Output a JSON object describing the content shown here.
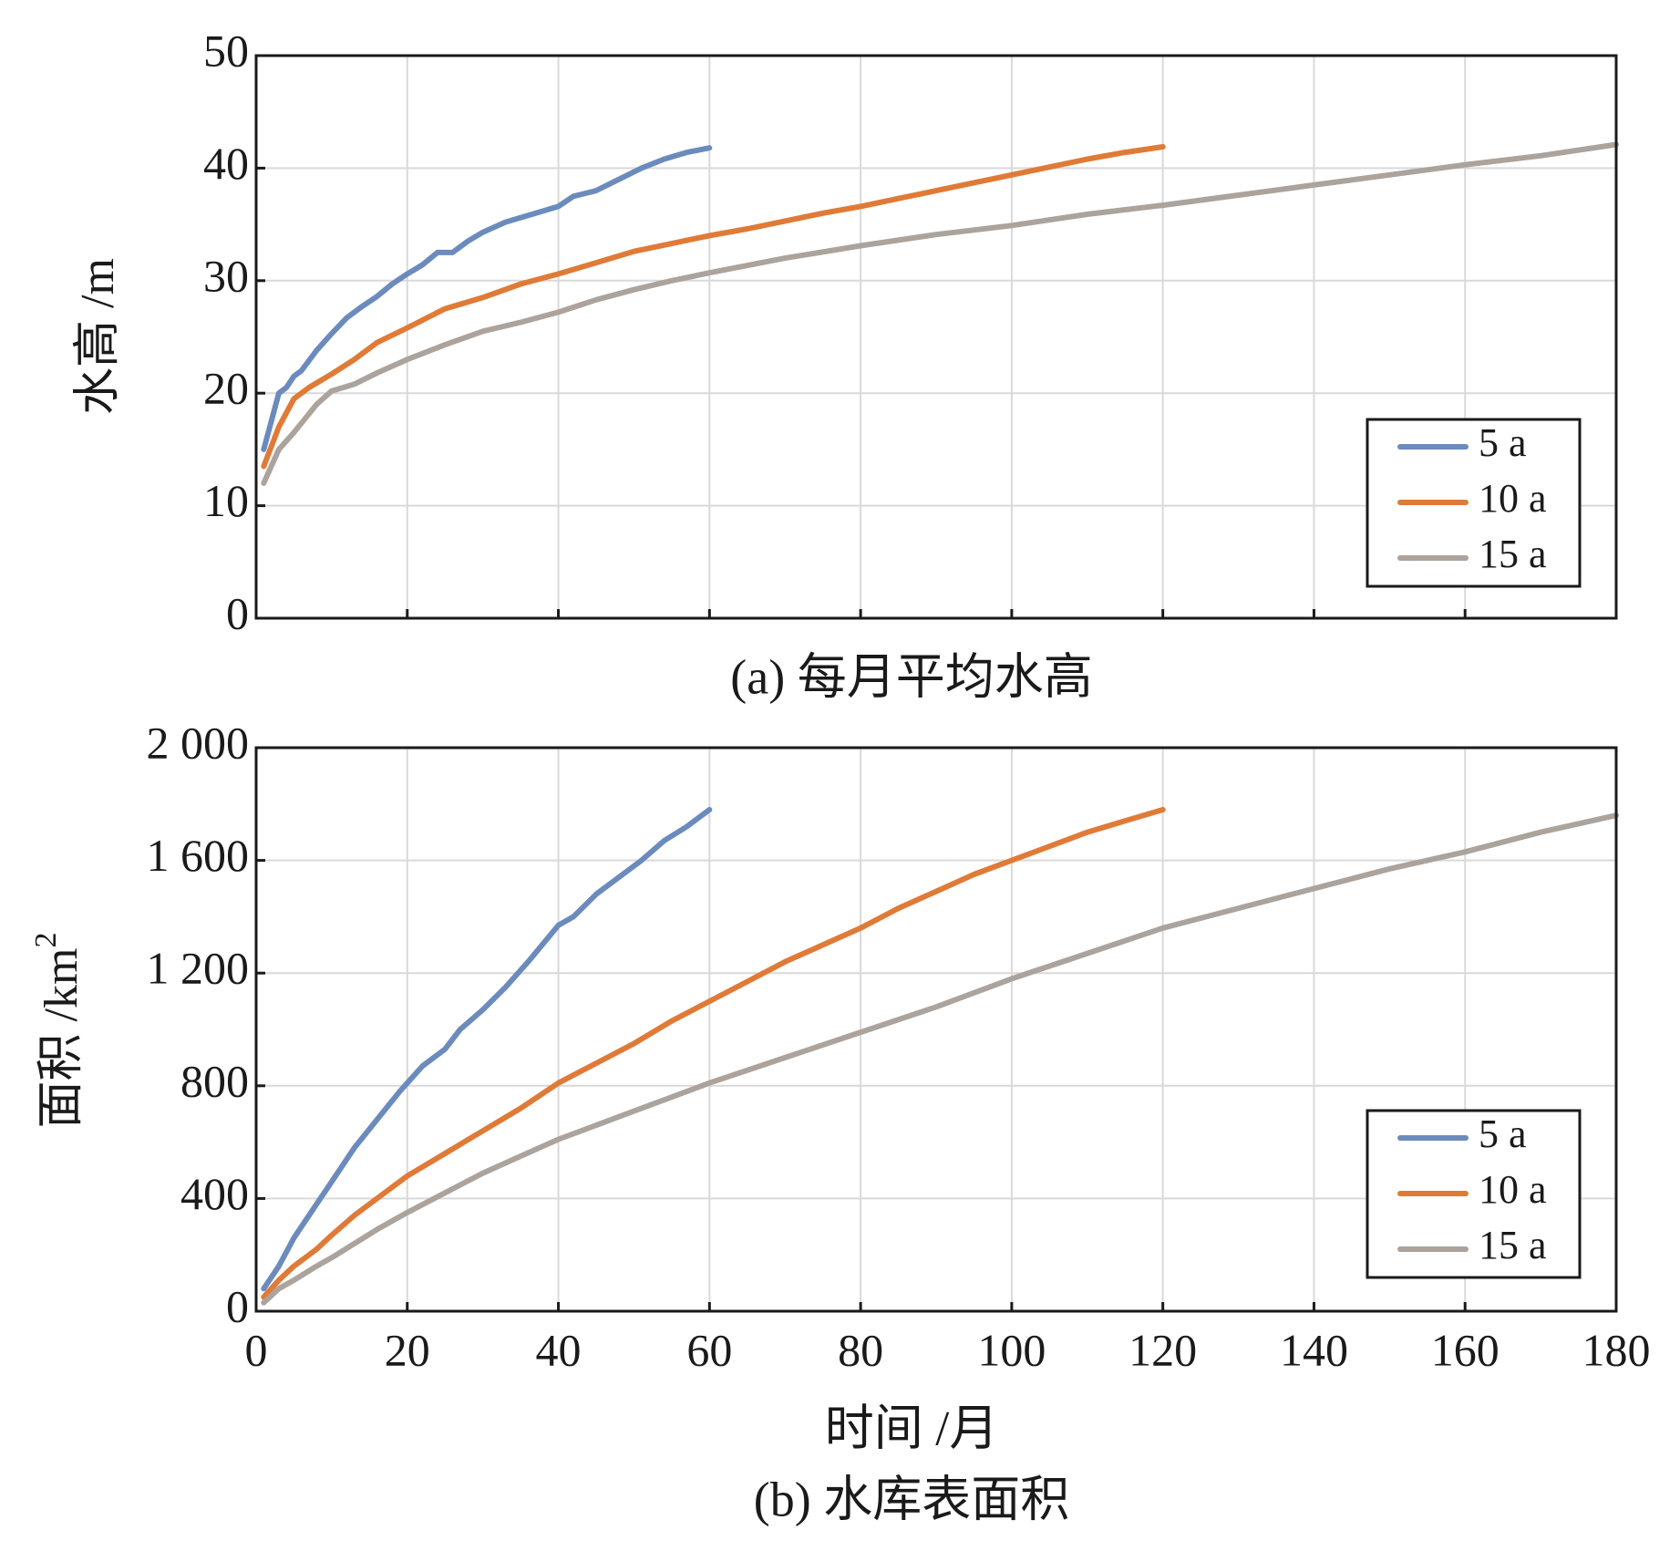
{
  "chart_data": [
    {
      "id": "a",
      "type": "line",
      "caption": "(a) 每月平均水高",
      "ylabel": "水高 /m",
      "xlabel": "",
      "xlim": [
        0,
        180
      ],
      "ylim": [
        0,
        50
      ],
      "xticks": [
        0,
        20,
        40,
        60,
        80,
        100,
        120,
        140,
        160,
        180
      ],
      "yticks": [
        0,
        10,
        20,
        30,
        40,
        50
      ],
      "ytick_labels": [
        "0",
        "10",
        "20",
        "30",
        "40",
        "50"
      ],
      "show_xtick_labels": false,
      "grid": true,
      "legend_position": "bottom-right",
      "series": [
        {
          "name": "5 a",
          "color": "#6b8bbd",
          "x": [
            1,
            2,
            3,
            4,
            5,
            6,
            8,
            10,
            12,
            14,
            16,
            18,
            20,
            22,
            24,
            26,
            28,
            30,
            33,
            36,
            40,
            42,
            45,
            48,
            51,
            54,
            57,
            60
          ],
          "y": [
            15,
            17.5,
            20,
            20.5,
            21.5,
            22,
            23.8,
            25.3,
            26.7,
            27.7,
            28.6,
            29.7,
            30.6,
            31.4,
            32.5,
            32.5,
            33.5,
            34.3,
            35.2,
            35.8,
            36.6,
            37.5,
            38,
            39,
            40,
            40.8,
            41.4,
            41.8
          ]
        },
        {
          "name": "10 a",
          "color": "#e07a37",
          "x": [
            1,
            3,
            5,
            7,
            10,
            13,
            16,
            20,
            25,
            30,
            35,
            40,
            45,
            50,
            55,
            60,
            65,
            70,
            75,
            80,
            85,
            90,
            95,
            100,
            105,
            110,
            115,
            120
          ],
          "y": [
            13.5,
            17,
            19.5,
            20.5,
            21.7,
            23,
            24.5,
            25.8,
            27.5,
            28.5,
            29.7,
            30.6,
            31.6,
            32.6,
            33.3,
            34,
            34.6,
            35.3,
            36,
            36.6,
            37.3,
            38,
            38.7,
            39.4,
            40.1,
            40.8,
            41.4,
            41.9
          ]
        },
        {
          "name": "15 a",
          "color": "#aba39c",
          "x": [
            1,
            3,
            5,
            8,
            10,
            13,
            16,
            20,
            25,
            30,
            35,
            40,
            45,
            50,
            55,
            60,
            70,
            80,
            90,
            100,
            110,
            120,
            130,
            140,
            150,
            160,
            170,
            180
          ],
          "y": [
            12,
            15,
            16.5,
            19,
            20.2,
            20.8,
            21.8,
            23,
            24.3,
            25.5,
            26.3,
            27.2,
            28.3,
            29.2,
            30,
            30.7,
            32,
            33.1,
            34.1,
            34.9,
            35.9,
            36.7,
            37.6,
            38.5,
            39.4,
            40.3,
            41.1,
            42.1
          ]
        }
      ]
    },
    {
      "id": "b",
      "type": "line",
      "caption": "(b) 水库表面积",
      "ylabel": "面积 /km",
      "ylabel_sup": "2",
      "xlabel": "时间 /月",
      "xlim": [
        0,
        180
      ],
      "ylim": [
        0,
        2000
      ],
      "xticks": [
        0,
        20,
        40,
        60,
        80,
        100,
        120,
        140,
        160,
        180
      ],
      "xtick_labels": [
        "0",
        "20",
        "40",
        "60",
        "80",
        "100",
        "120",
        "140",
        "160",
        "180"
      ],
      "yticks": [
        0,
        400,
        800,
        1200,
        1600,
        2000
      ],
      "ytick_labels": [
        "0",
        "400",
        "800",
        "1 200",
        "1 600",
        "2 000"
      ],
      "show_xtick_labels": true,
      "grid": true,
      "legend_position": "bottom-right",
      "series": [
        {
          "name": "5 a",
          "color": "#6b8bbd",
          "x": [
            1,
            3,
            5,
            8,
            10,
            13,
            16,
            19,
            22,
            25,
            27,
            30,
            33,
            36,
            40,
            42,
            45,
            48,
            51,
            54,
            57,
            60
          ],
          "y": [
            80,
            160,
            260,
            380,
            460,
            580,
            680,
            780,
            870,
            930,
            1000,
            1070,
            1150,
            1240,
            1370,
            1400,
            1480,
            1540,
            1600,
            1670,
            1720,
            1780
          ]
        },
        {
          "name": "10 a",
          "color": "#e07a37",
          "x": [
            1,
            3,
            5,
            8,
            10,
            13,
            16,
            20,
            25,
            30,
            35,
            40,
            45,
            50,
            55,
            60,
            65,
            70,
            75,
            80,
            85,
            90,
            95,
            100,
            105,
            110,
            115,
            120
          ],
          "y": [
            50,
            110,
            160,
            220,
            270,
            340,
            400,
            480,
            560,
            640,
            720,
            810,
            880,
            950,
            1030,
            1100,
            1170,
            1240,
            1300,
            1360,
            1430,
            1490,
            1550,
            1600,
            1650,
            1700,
            1740,
            1780
          ]
        },
        {
          "name": "15 a",
          "color": "#aba39c",
          "x": [
            1,
            3,
            5,
            8,
            10,
            13,
            16,
            20,
            25,
            30,
            35,
            40,
            45,
            50,
            55,
            60,
            70,
            80,
            90,
            100,
            110,
            120,
            130,
            140,
            150,
            160,
            170,
            180
          ],
          "y": [
            30,
            80,
            110,
            160,
            190,
            240,
            290,
            350,
            420,
            490,
            550,
            610,
            660,
            710,
            760,
            810,
            900,
            990,
            1080,
            1180,
            1270,
            1360,
            1430,
            1500,
            1570,
            1630,
            1700,
            1760
          ]
        }
      ]
    }
  ]
}
